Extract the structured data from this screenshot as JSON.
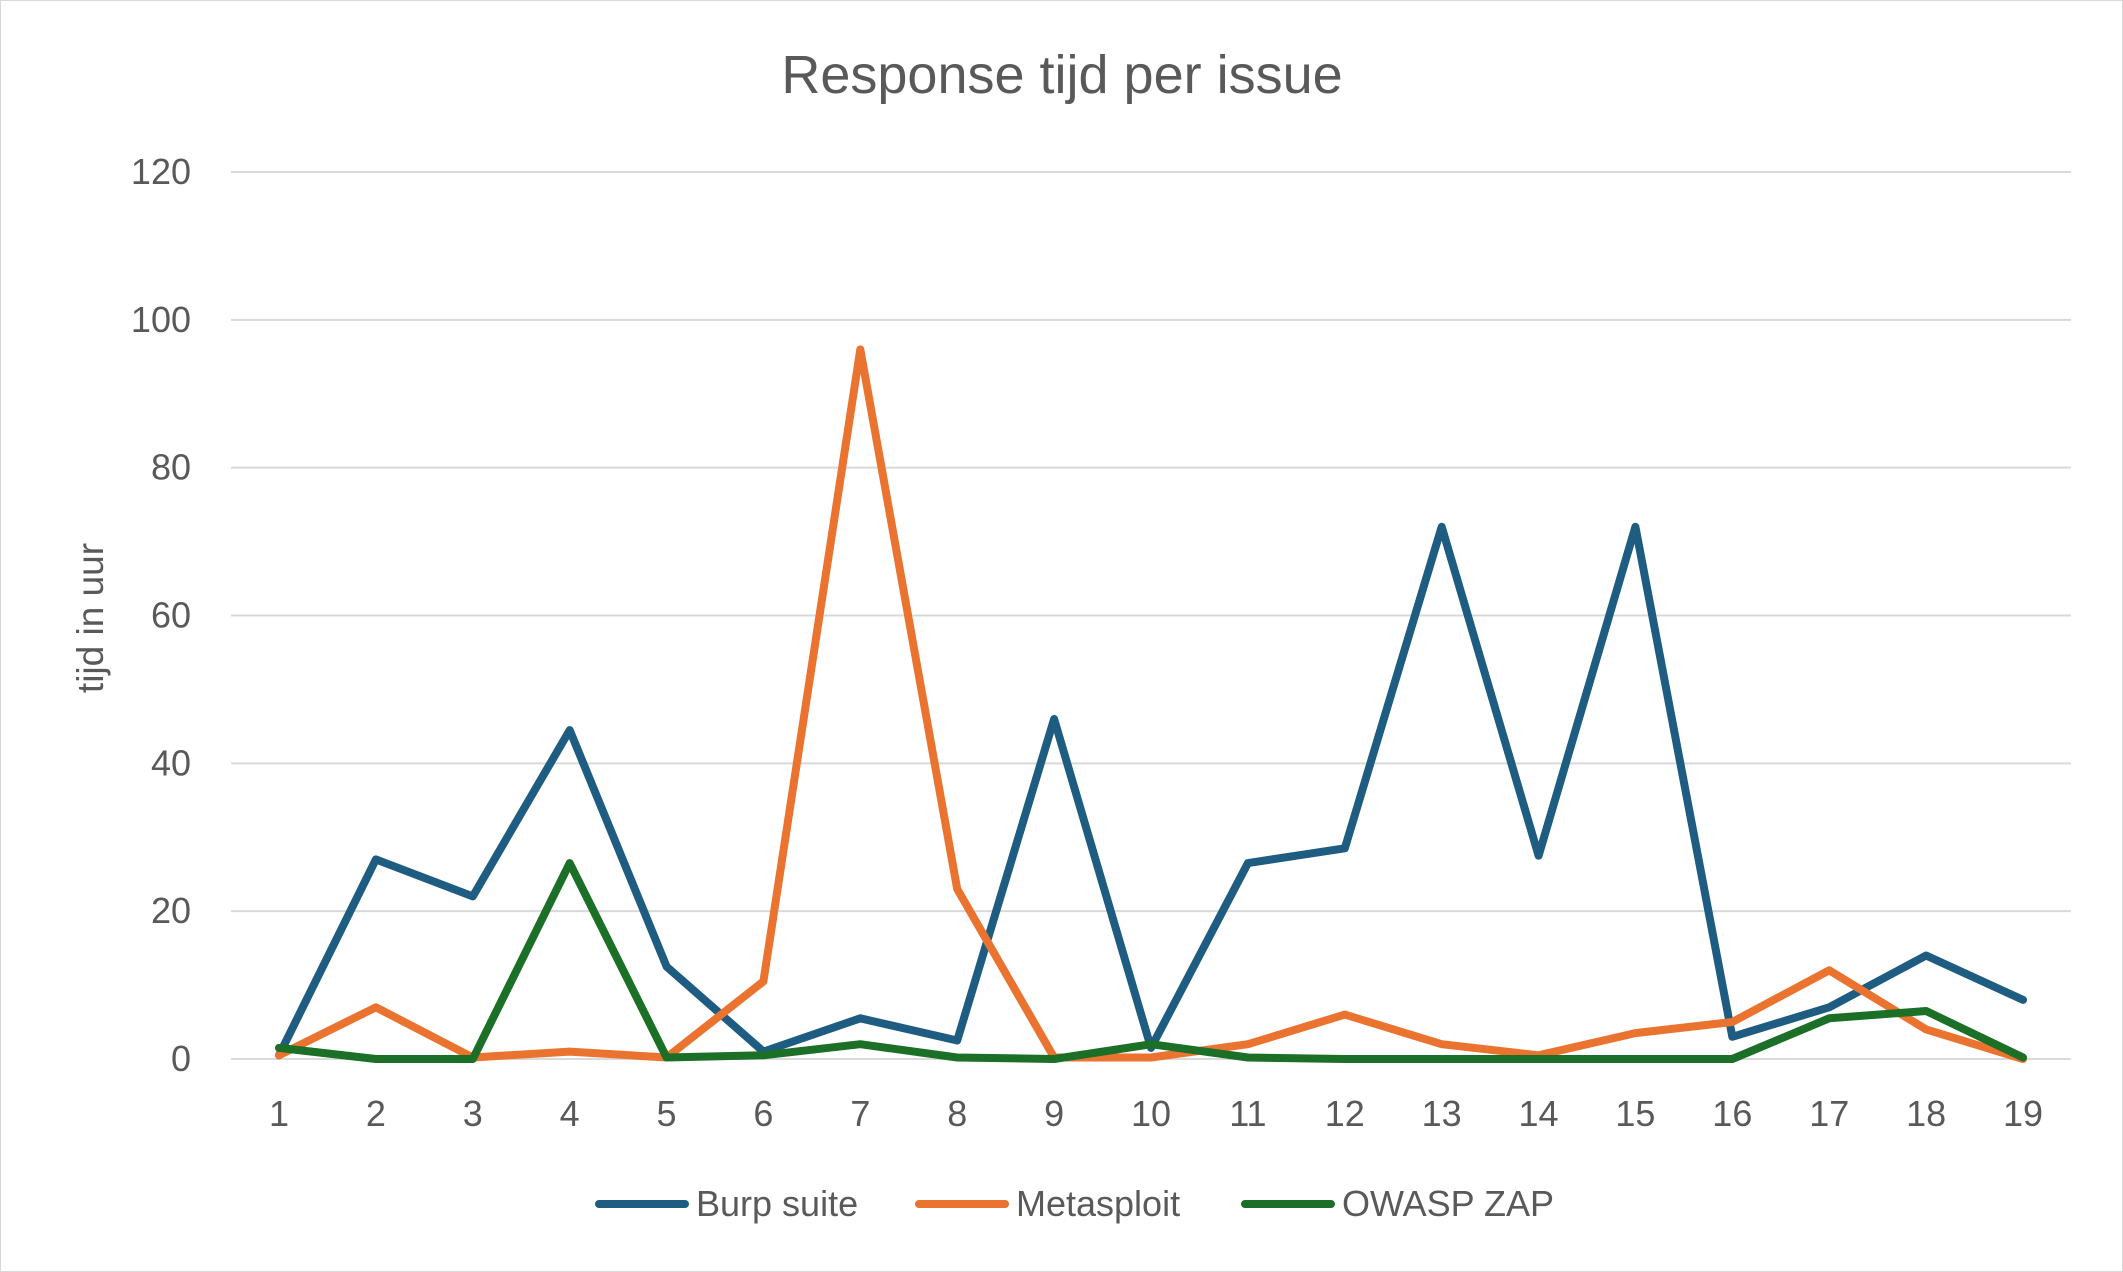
{
  "chart_data": {
    "type": "line",
    "title": "Response tijd per issue",
    "xlabel": "",
    "ylabel": "tijd  in uur",
    "categories": [
      "1",
      "2",
      "3",
      "4",
      "5",
      "6",
      "7",
      "8",
      "9",
      "10",
      "11",
      "12",
      "13",
      "14",
      "15",
      "16",
      "17",
      "18",
      "19"
    ],
    "ylim": [
      0,
      120
    ],
    "yticks": [
      "0",
      "20",
      "40",
      "60",
      "80",
      "100",
      "120"
    ],
    "grid": true,
    "legend_position": "bottom",
    "series": [
      {
        "name": "Burp suite",
        "color": "#1f5c82",
        "values": [
          0.5,
          27,
          22,
          44.5,
          12.5,
          1,
          5.5,
          2.5,
          46,
          1.5,
          26.5,
          28.5,
          72,
          27.5,
          72,
          3,
          7,
          14,
          8
        ]
      },
      {
        "name": "Metasploit",
        "color": "#ea7330",
        "values": [
          0.5,
          7,
          0.2,
          1,
          0.2,
          10.5,
          96,
          23,
          0.2,
          0.2,
          2,
          6,
          2,
          0.5,
          3.5,
          5,
          12,
          4,
          0
        ]
      },
      {
        "name": "OWASP ZAP",
        "color": "#1b6f26",
        "values": [
          1.5,
          0,
          0,
          26.5,
          0.2,
          0.5,
          2,
          0.2,
          0,
          2,
          0.2,
          0,
          0,
          0,
          0,
          0,
          5.5,
          6.5,
          0.2
        ]
      }
    ]
  }
}
